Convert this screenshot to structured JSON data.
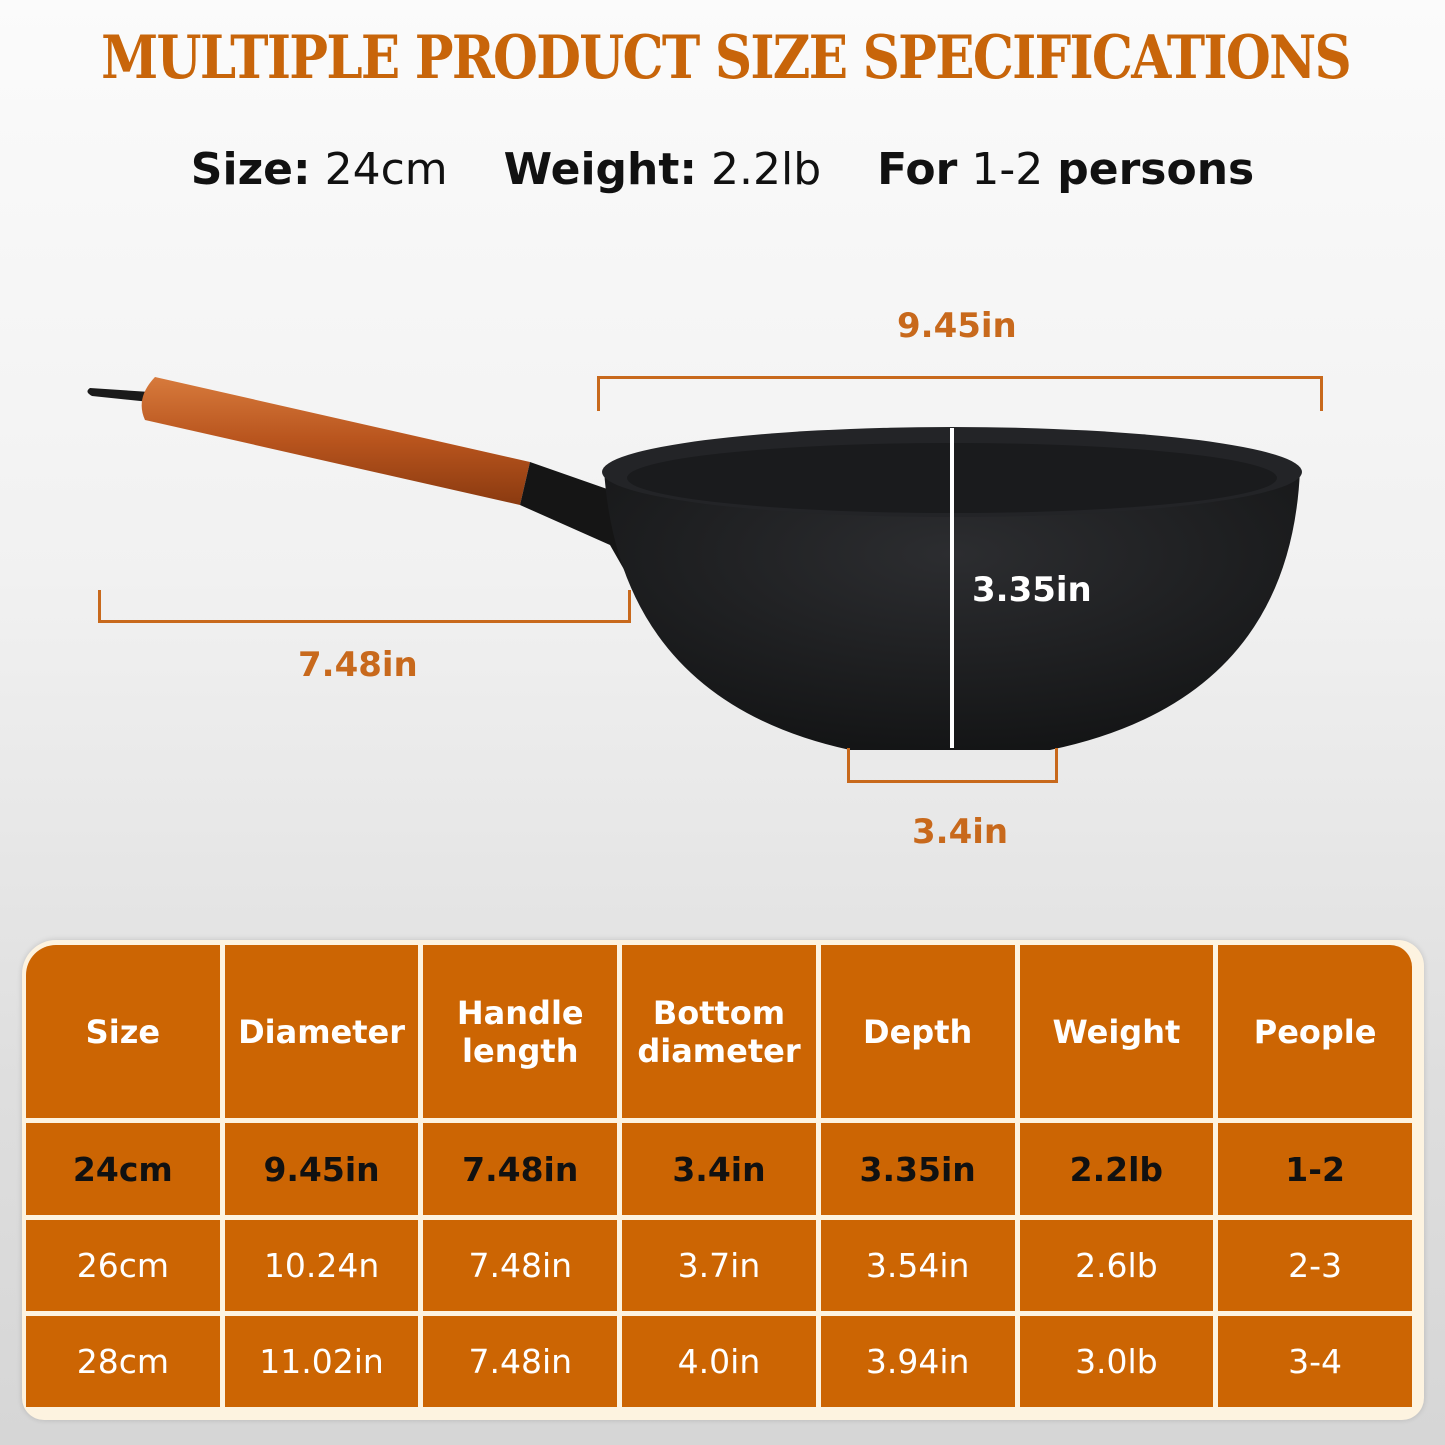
{
  "title": "MULTIPLE PRODUCT SIZE SPECIFICATIONS",
  "summary": {
    "size_label": "Size:",
    "size_value": "24cm",
    "weight_label": "Weight:",
    "weight_value": "2.2lb",
    "for_label": "For",
    "persons_value": "1-2",
    "persons_label": "persons"
  },
  "dimensions": {
    "diameter": "9.45in",
    "handle_length": "7.48in",
    "depth": "3.35in",
    "bottom_diameter": "3.4in"
  },
  "colors": {
    "accent": "#cc6503",
    "table_border": "#fdf3e0",
    "handle_wood": "#b5541c",
    "pan_body": "#1c1d1f"
  },
  "table": {
    "headers": [
      "Size",
      "Diameter",
      "Handle length",
      "Bottom diameter",
      "Depth",
      "Weight",
      "People"
    ],
    "rows": [
      [
        "24cm",
        "9.45in",
        "7.48in",
        "3.4in",
        "3.35in",
        "2.2lb",
        "1-2"
      ],
      [
        "26cm",
        "10.24n",
        "7.48in",
        "3.7in",
        "3.54in",
        "2.6lb",
        "2-3"
      ],
      [
        "28cm",
        "11.02in",
        "7.48in",
        "4.0in",
        "3.94in",
        "3.0lb",
        "3-4"
      ]
    ]
  }
}
